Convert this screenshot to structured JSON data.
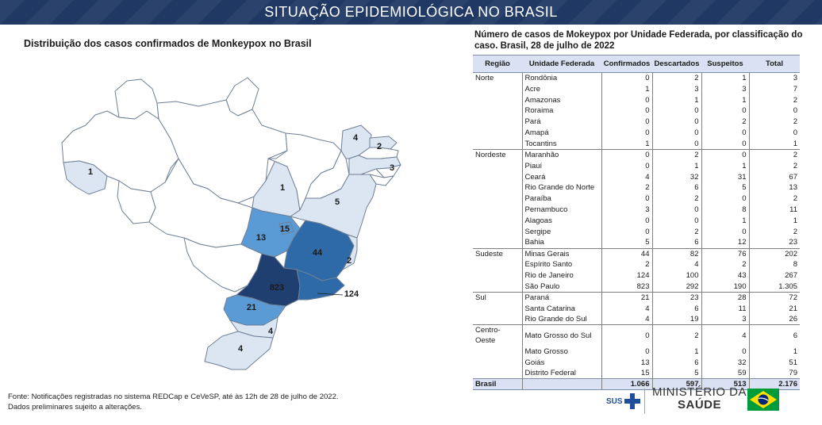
{
  "header": {
    "title": "SITUAÇÃO EPIDEMIOLÓGICA NO BRASIL"
  },
  "map": {
    "title": "Distribuição dos casos confirmados de Monkeypox no Brasil",
    "outline_color": "#6f7f95",
    "color_scale": [
      "#ffffff",
      "#dce6f3",
      "#5b9bd5",
      "#2f6aa8",
      "#1f3f70"
    ],
    "states": [
      {
        "uf": "AM",
        "label": "",
        "value": 0
      },
      {
        "uf": "PA",
        "label": "",
        "value": 0
      },
      {
        "uf": "RR",
        "label": "",
        "value": 0
      },
      {
        "uf": "AP",
        "label": "",
        "value": 0
      },
      {
        "uf": "AC",
        "label": "1",
        "value": 1
      },
      {
        "uf": "RO",
        "label": "",
        "value": 0
      },
      {
        "uf": "MT",
        "label": "",
        "value": 0
      },
      {
        "uf": "TO",
        "label": "1",
        "value": 1
      },
      {
        "uf": "MA",
        "label": "",
        "value": 0
      },
      {
        "uf": "PI",
        "label": "",
        "value": 0
      },
      {
        "uf": "CE",
        "label": "4",
        "value": 4
      },
      {
        "uf": "RN",
        "label": "2",
        "value": 2
      },
      {
        "uf": "PE",
        "label": "3",
        "value": 3
      },
      {
        "uf": "BA",
        "label": "5",
        "value": 5
      },
      {
        "uf": "GO",
        "label": "13",
        "value": 13
      },
      {
        "uf": "DF",
        "label": "15",
        "value": 15
      },
      {
        "uf": "MG",
        "label": "44",
        "value": 44
      },
      {
        "uf": "ES",
        "label": "2",
        "value": 2
      },
      {
        "uf": "RJ",
        "label": "124",
        "value": 124
      },
      {
        "uf": "SP",
        "label": "823",
        "value": 823
      },
      {
        "uf": "PR",
        "label": "21",
        "value": 21
      },
      {
        "uf": "SC",
        "label": "4",
        "value": 4
      },
      {
        "uf": "RS",
        "label": "4",
        "value": 4
      },
      {
        "uf": "ISLAND",
        "label": "1",
        "value": 1
      }
    ]
  },
  "chart_data": {
    "type": "table",
    "title": "Número de casos de Mokeypox por Unidade Federada, por classificação do caso. Brasil, 28 de julho de 2022",
    "columns": [
      "Região",
      "Unidade Federada",
      "Confirmados",
      "Descartados",
      "Suspeitos",
      "Total"
    ],
    "groups": [
      {
        "region": "Norte",
        "rows": [
          [
            "Rondônia",
            "0",
            "2",
            "1",
            "3"
          ],
          [
            "Acre",
            "1",
            "3",
            "3",
            "7"
          ],
          [
            "Amazonas",
            "0",
            "1",
            "1",
            "2"
          ],
          [
            "Roraima",
            "0",
            "0",
            "0",
            "0"
          ],
          [
            "Pará",
            "0",
            "0",
            "2",
            "2"
          ],
          [
            "Amapá",
            "0",
            "0",
            "0",
            "0"
          ],
          [
            "Tocantins",
            "1",
            "0",
            "0",
            "1"
          ]
        ]
      },
      {
        "region": "Nordeste",
        "rows": [
          [
            "Maranhão",
            "0",
            "2",
            "0",
            "2"
          ],
          [
            "Piauí",
            "0",
            "1",
            "1",
            "2"
          ],
          [
            "Ceará",
            "4",
            "32",
            "31",
            "67"
          ],
          [
            "Rio Grande do Norte",
            "2",
            "6",
            "5",
            "13"
          ],
          [
            "Paraíba",
            "0",
            "2",
            "0",
            "2"
          ],
          [
            "Pernambuco",
            "3",
            "0",
            "8",
            "11"
          ],
          [
            "Alagoas",
            "0",
            "0",
            "1",
            "1"
          ],
          [
            "Sergipe",
            "0",
            "2",
            "0",
            "2"
          ],
          [
            "Bahia",
            "5",
            "6",
            "12",
            "23"
          ]
        ]
      },
      {
        "region": "Sudeste",
        "rows": [
          [
            "Minas Gerais",
            "44",
            "82",
            "76",
            "202"
          ],
          [
            "Espírito Santo",
            "2",
            "4",
            "2",
            "8"
          ],
          [
            "Rio de Janeiro",
            "124",
            "100",
            "43",
            "267"
          ],
          [
            "São Paulo",
            "823",
            "292",
            "190",
            "1.305"
          ]
        ]
      },
      {
        "region": "Sul",
        "rows": [
          [
            "Paraná",
            "21",
            "23",
            "28",
            "72"
          ],
          [
            "Santa Catarina",
            "4",
            "6",
            "11",
            "21"
          ],
          [
            "Rio Grande do Sul",
            "4",
            "19",
            "3",
            "26"
          ]
        ]
      },
      {
        "region": "Centro-Oeste",
        "rows": [
          [
            "Mato Grosso do Sul",
            "0",
            "2",
            "4",
            "6"
          ],
          [
            "Mato Grosso",
            "0",
            "1",
            "0",
            "1"
          ],
          [
            "Goiás",
            "13",
            "6",
            "32",
            "51"
          ],
          [
            "Distrito Federal",
            "15",
            "5",
            "59",
            "79"
          ]
        ]
      }
    ],
    "total": [
      "Brasil",
      "1.066",
      "597",
      "513",
      "2.176"
    ]
  },
  "footer": {
    "source_line1": "Fonte: Notificações registradas no sistema REDCap e CeVeSP, até às 12h de 28 de julho de 2022.",
    "source_line2": "Dados preliminares sujeito a alterações.",
    "sus_label": "SUS",
    "ministry_line1": "MINISTÉRIO DA",
    "ministry_line2": "SAÚDE"
  }
}
